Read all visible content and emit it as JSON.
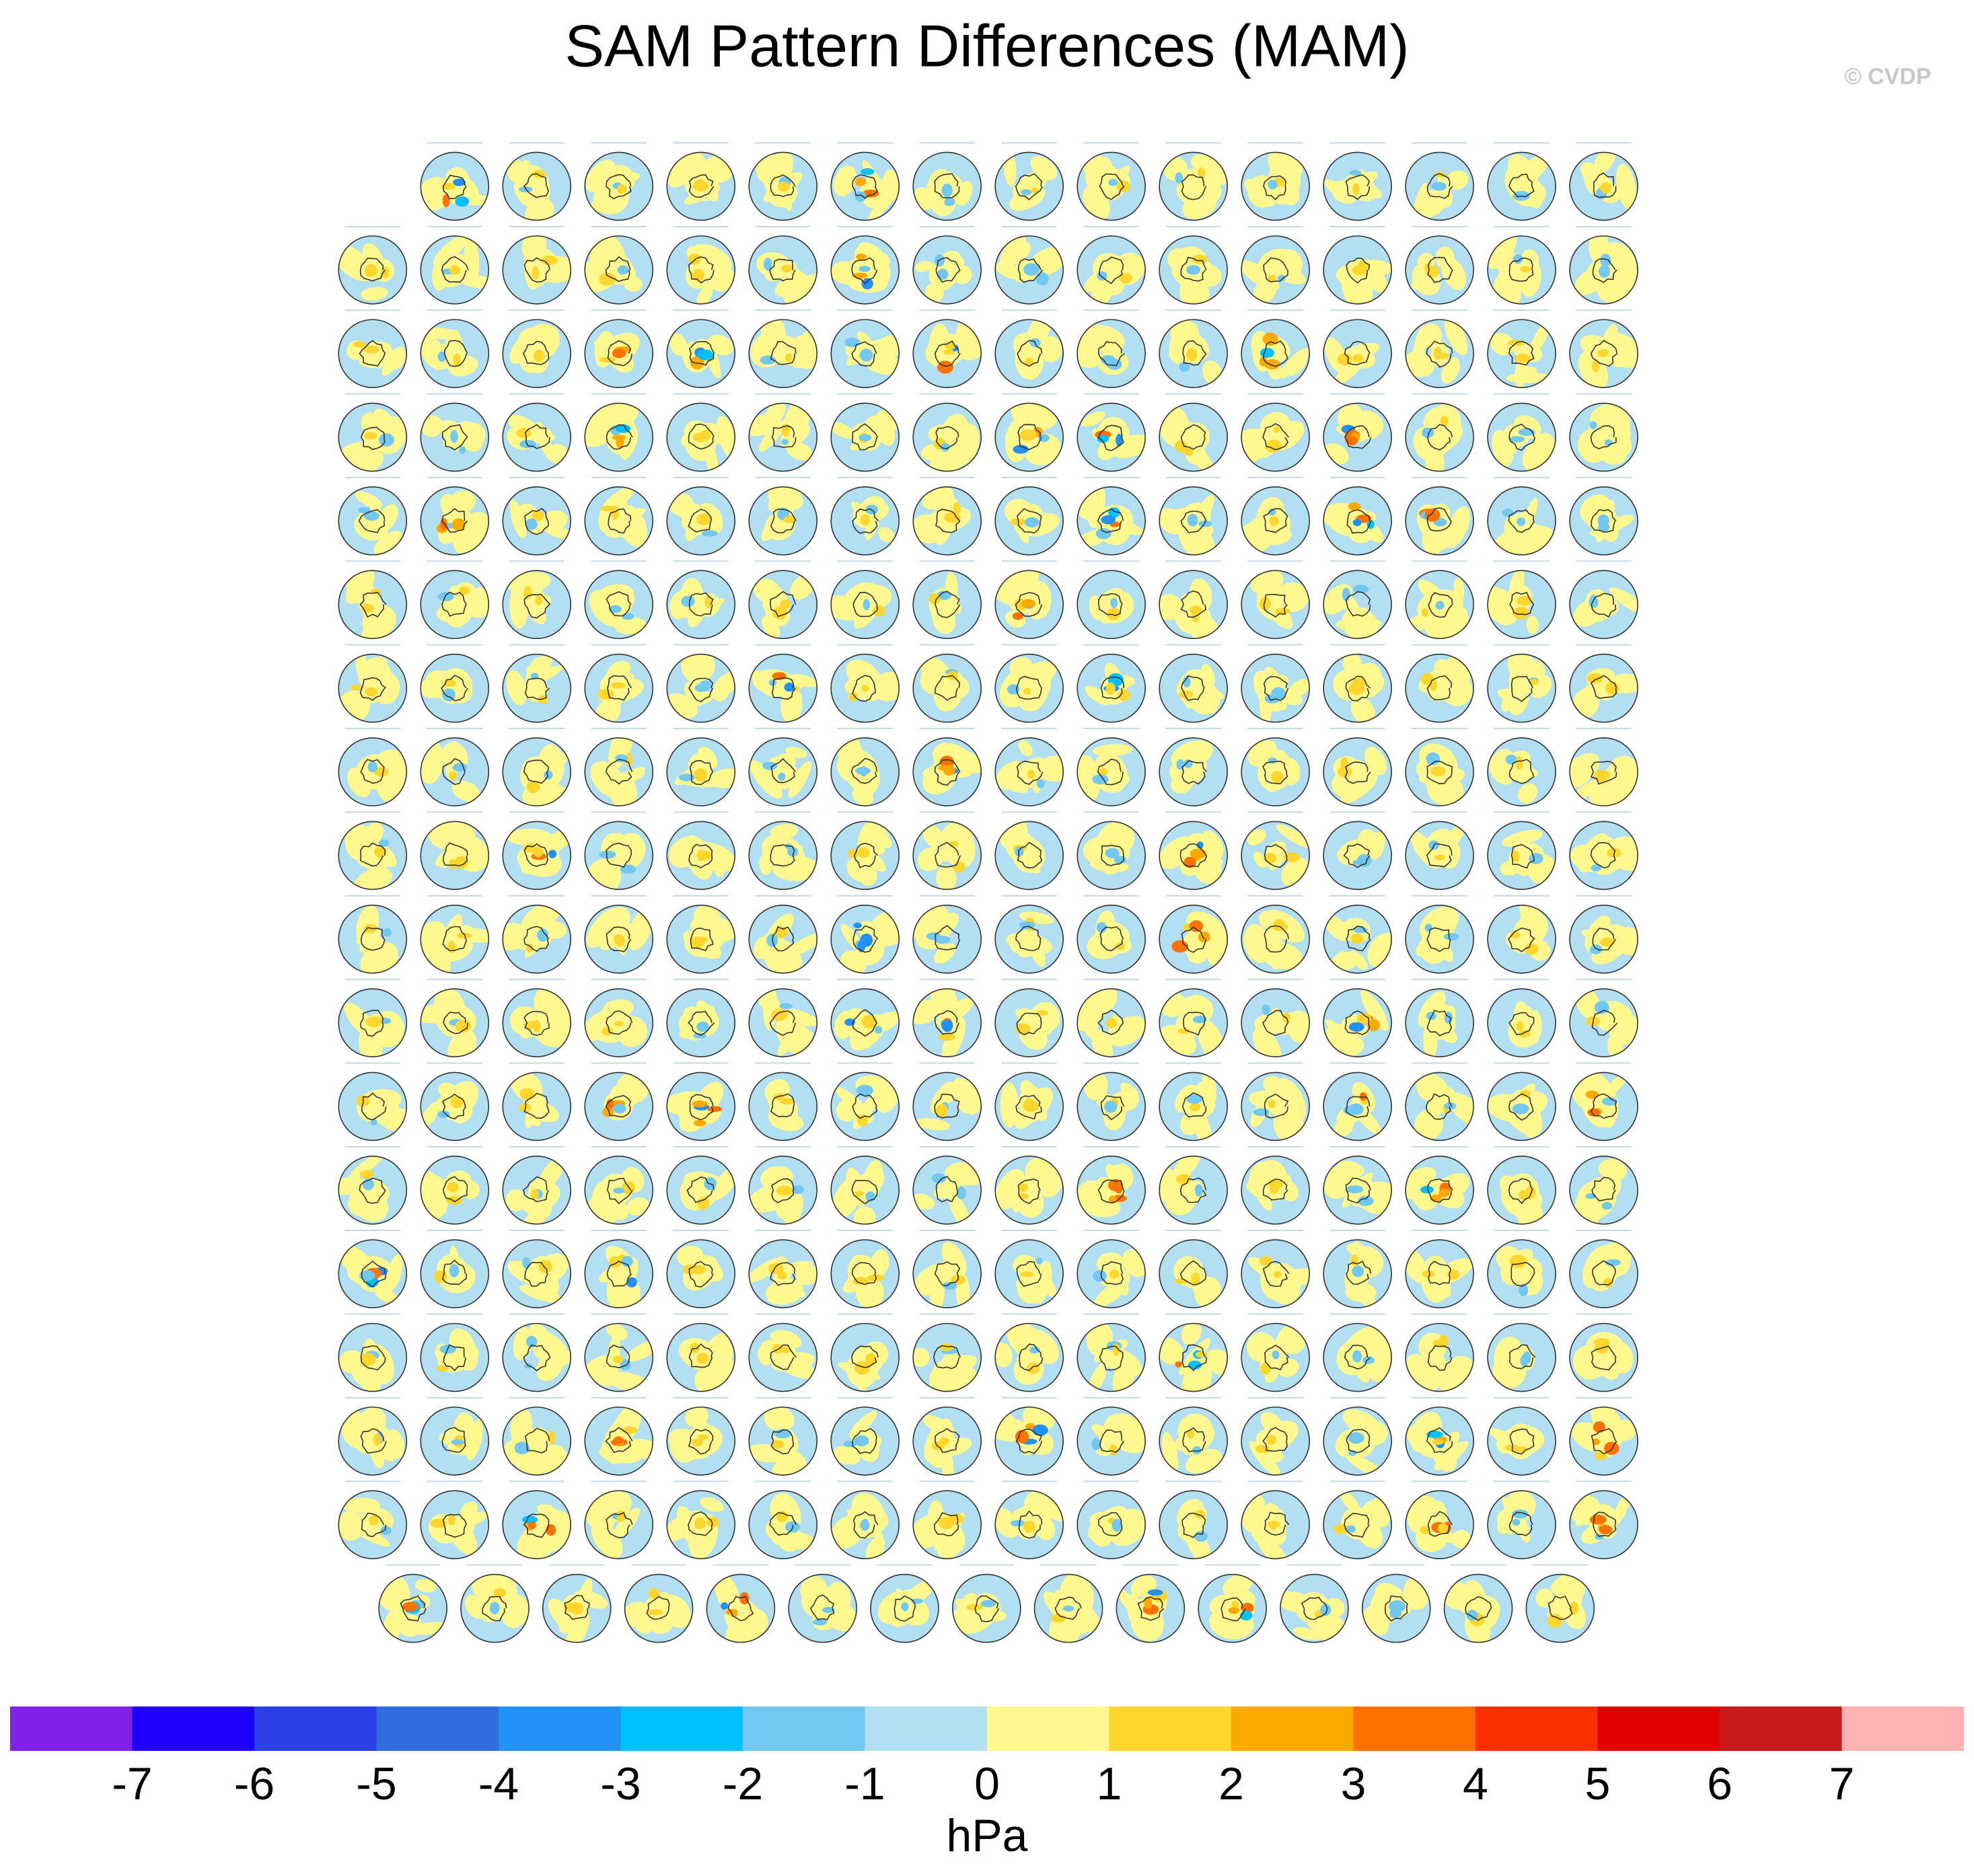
{
  "chart_data": {
    "type": "colorbar",
    "title": "SAM Pattern Differences (MAM)",
    "annotation": "© CVDP",
    "xlabel": "hPa",
    "xlim": [
      -8,
      8
    ],
    "xticks": [
      -7,
      -6,
      -5,
      -4,
      -3,
      -2,
      -1,
      0,
      1,
      2,
      3,
      4,
      5,
      6,
      7
    ],
    "colors": [
      "#8022e8",
      "#1e00ff",
      "#2b40e6",
      "#306ee0",
      "#2292f8",
      "#00c0ff",
      "#72c8f0",
      "#b2e0f2",
      "#fff88e",
      "#ffd62e",
      "#ffa800",
      "#ff7200",
      "#ff3000",
      "#e00000",
      "#c81a1a",
      "#ffb2b2"
    ]
  }
}
